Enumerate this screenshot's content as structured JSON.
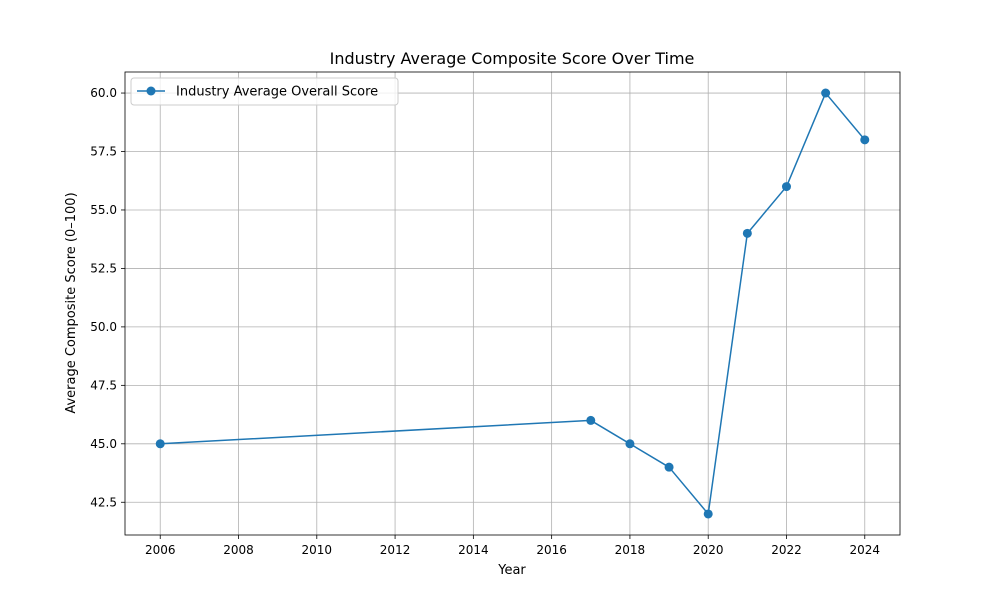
{
  "chart_data": {
    "type": "line",
    "title": "Industry Average Composite Score Over Time",
    "xlabel": "Year",
    "ylabel": "Average Composite Score (0–100)",
    "xlim": [
      2005.1,
      2024.9
    ],
    "ylim": [
      41.1,
      60.9
    ],
    "x_ticks": [
      2006,
      2008,
      2010,
      2012,
      2014,
      2016,
      2018,
      2020,
      2022,
      2024
    ],
    "y_ticks": [
      42.5,
      45.0,
      47.5,
      50.0,
      52.5,
      55.0,
      57.5,
      60.0
    ],
    "x_tick_labels": [
      "2006",
      "2008",
      "2010",
      "2012",
      "2014",
      "2016",
      "2018",
      "2020",
      "2022",
      "2024"
    ],
    "y_tick_labels": [
      "42.5",
      "45.0",
      "47.5",
      "50.0",
      "52.5",
      "55.0",
      "57.5",
      "60.0"
    ],
    "grid": true,
    "legend_position": "top-left",
    "series": [
      {
        "name": "Industry Average Overall Score",
        "color": "#1f77b4",
        "marker": "circle",
        "x": [
          2006,
          2017,
          2018,
          2019,
          2020,
          2021,
          2022,
          2023,
          2024
        ],
        "y": [
          45,
          46,
          45,
          44,
          42,
          54,
          56,
          60,
          58
        ]
      }
    ]
  }
}
